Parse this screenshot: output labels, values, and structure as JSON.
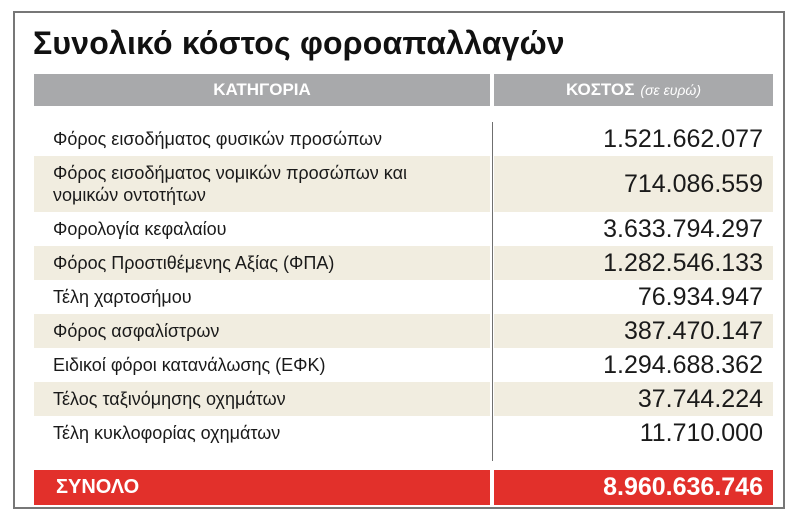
{
  "title": "Συνολικό κόστος φοροαπαλλαγών",
  "header": {
    "category": "ΚΑΤΗΓΟΡΙΑ",
    "cost": "ΚΟΣΤΟΣ",
    "cost_unit": "(σε ευρώ)"
  },
  "rows": [
    {
      "category": "Φόρος εισοδήματος φυσικών προσώπων",
      "cost": "1.521.662.077"
    },
    {
      "category": "Φόρος εισοδήματος νομικών προσώπων και νομικών οντοτήτων",
      "cost": "714.086.559"
    },
    {
      "category": "Φορολογία κεφαλαίου",
      "cost": "3.633.794.297"
    },
    {
      "category": "Φόρος Προστιθέμενης Αξίας (ΦΠΑ)",
      "cost": "1.282.546.133"
    },
    {
      "category": "Τέλη χαρτοσήμου",
      "cost": "76.934.947"
    },
    {
      "category": "Φόρος ασφαλίστρων",
      "cost": "387.470.147"
    },
    {
      "category": "Ειδικοί φόροι κατανάλωσης (ΕΦΚ)",
      "cost": "1.294.688.362"
    },
    {
      "category": "Τέλος ταξινόμησης οχημάτων",
      "cost": "37.744.224"
    },
    {
      "category": "Τέλη κυκλοφορίας οχημάτων",
      "cost": "11.710.000"
    }
  ],
  "total": {
    "label": "ΣΥΝΟΛΟ",
    "cost": "8.960.636.746"
  },
  "colors": {
    "header_bg": "#a8a9ab",
    "alt_row_bg": "#f1ede0",
    "total_bg": "#e2302b"
  }
}
